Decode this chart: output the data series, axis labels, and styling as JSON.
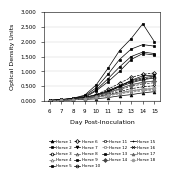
{
  "xlabel": "Day Post-Inoculation",
  "ylabel": "Optical Density Units",
  "xlim": [
    5.5,
    15.5
  ],
  "ylim": [
    0,
    3.0
  ],
  "xticks": [
    6,
    7,
    8,
    9,
    10,
    11,
    12,
    13,
    14,
    15
  ],
  "yticks": [
    0.0,
    0.5,
    1.0,
    1.5,
    2.0,
    2.5,
    3.0
  ],
  "series": [
    {
      "label": "Horse 1",
      "color": "#000000",
      "marker": "^",
      "fillstyle": "full",
      "linestyle": "-",
      "data": [
        [
          6,
          0.02
        ],
        [
          7,
          0.03
        ],
        [
          8,
          0.05
        ],
        [
          9,
          0.06
        ],
        [
          10,
          0.08
        ],
        [
          11,
          0.12
        ],
        [
          12,
          0.18
        ],
        [
          13,
          0.22
        ],
        [
          14,
          0.28
        ],
        [
          15,
          0.32
        ]
      ]
    },
    {
      "label": "Horse 2",
      "color": "#000000",
      "marker": "s",
      "fillstyle": "full",
      "linestyle": "-",
      "data": [
        [
          6,
          0.03
        ],
        [
          7,
          0.05
        ],
        [
          8,
          0.08
        ],
        [
          9,
          0.12
        ],
        [
          10,
          0.35
        ],
        [
          11,
          0.65
        ],
        [
          12,
          1.0
        ],
        [
          13,
          1.4
        ],
        [
          14,
          1.6
        ],
        [
          15,
          1.55
        ]
      ]
    },
    {
      "label": "Horse 3",
      "color": "#000000",
      "marker": "o",
      "fillstyle": "none",
      "linestyle": "--",
      "data": [
        [
          6,
          0.02
        ],
        [
          7,
          0.04
        ],
        [
          8,
          0.06
        ],
        [
          9,
          0.1
        ],
        [
          10,
          0.2
        ],
        [
          11,
          0.35
        ],
        [
          12,
          0.5
        ],
        [
          13,
          0.65
        ],
        [
          14,
          0.75
        ],
        [
          15,
          0.8
        ]
      ]
    },
    {
      "label": "Horse 4",
      "color": "#777777",
      "marker": "^",
      "fillstyle": "none",
      "linestyle": "--",
      "data": [
        [
          6,
          0.02
        ],
        [
          7,
          0.03
        ],
        [
          8,
          0.05
        ],
        [
          9,
          0.07
        ],
        [
          10,
          0.12
        ],
        [
          11,
          0.18
        ],
        [
          12,
          0.25
        ],
        [
          13,
          0.3
        ],
        [
          14,
          0.35
        ],
        [
          15,
          0.38
        ]
      ]
    },
    {
      "label": "Horse 5",
      "color": "#000000",
      "marker": "s",
      "fillstyle": "full",
      "linestyle": "-",
      "data": [
        [
          6,
          0.03
        ],
        [
          7,
          0.06
        ],
        [
          8,
          0.1
        ],
        [
          9,
          0.2
        ],
        [
          10,
          0.55
        ],
        [
          11,
          1.1
        ],
        [
          12,
          1.7
        ],
        [
          13,
          2.1
        ],
        [
          14,
          2.6
        ],
        [
          15,
          2.0
        ]
      ]
    },
    {
      "label": "Horse 6",
      "color": "#000000",
      "marker": "D",
      "fillstyle": "none",
      "linestyle": "--",
      "data": [
        [
          6,
          0.02
        ],
        [
          7,
          0.04
        ],
        [
          8,
          0.07
        ],
        [
          9,
          0.12
        ],
        [
          10,
          0.22
        ],
        [
          11,
          0.4
        ],
        [
          12,
          0.6
        ],
        [
          13,
          0.8
        ],
        [
          14,
          0.9
        ],
        [
          15,
          0.95
        ]
      ]
    },
    {
      "label": "Horse 7",
      "color": "#000000",
      "marker": "v",
      "fillstyle": "full",
      "linestyle": "-",
      "data": [
        [
          6,
          0.02
        ],
        [
          7,
          0.03
        ],
        [
          8,
          0.06
        ],
        [
          9,
          0.1
        ],
        [
          10,
          0.18
        ],
        [
          11,
          0.3
        ],
        [
          12,
          0.5
        ],
        [
          13,
          0.7
        ],
        [
          14,
          0.85
        ],
        [
          15,
          0.88
        ]
      ]
    },
    {
      "label": "Horse 8",
      "color": "#555555",
      "marker": "^",
      "fillstyle": "none",
      "linestyle": "-",
      "data": [
        [
          6,
          0.02
        ],
        [
          7,
          0.03
        ],
        [
          8,
          0.05
        ],
        [
          9,
          0.08
        ],
        [
          10,
          0.14
        ],
        [
          11,
          0.2
        ],
        [
          12,
          0.28
        ],
        [
          13,
          0.35
        ],
        [
          14,
          0.4
        ],
        [
          15,
          0.42
        ]
      ]
    },
    {
      "label": "Horse 9",
      "color": "#000000",
      "marker": "s",
      "fillstyle": "full",
      "linestyle": "-",
      "data": [
        [
          6,
          0.03
        ],
        [
          7,
          0.05
        ],
        [
          8,
          0.09
        ],
        [
          9,
          0.18
        ],
        [
          10,
          0.45
        ],
        [
          11,
          0.9
        ],
        [
          12,
          1.4
        ],
        [
          13,
          1.75
        ],
        [
          14,
          1.9
        ],
        [
          15,
          1.85
        ]
      ]
    },
    {
      "label": "Horse 10",
      "color": "#000000",
      "marker": "o",
      "fillstyle": "none",
      "linestyle": "-",
      "data": [
        [
          6,
          0.02
        ],
        [
          7,
          0.04
        ],
        [
          8,
          0.07
        ],
        [
          9,
          0.11
        ],
        [
          10,
          0.2
        ],
        [
          11,
          0.32
        ],
        [
          12,
          0.48
        ],
        [
          13,
          0.62
        ],
        [
          14,
          0.72
        ],
        [
          15,
          0.78
        ]
      ]
    },
    {
      "label": "Horse 11",
      "color": "#333333",
      "marker": "s",
      "fillstyle": "none",
      "linestyle": "--",
      "data": [
        [
          6,
          0.02
        ],
        [
          7,
          0.03
        ],
        [
          8,
          0.06
        ],
        [
          9,
          0.09
        ],
        [
          10,
          0.16
        ],
        [
          11,
          0.25
        ],
        [
          12,
          0.38
        ],
        [
          13,
          0.5
        ],
        [
          14,
          0.58
        ],
        [
          15,
          0.62
        ]
      ]
    },
    {
      "label": "Horse 12",
      "color": "#888888",
      "marker": "s",
      "fillstyle": "none",
      "linestyle": "--",
      "data": [
        [
          6,
          0.02
        ],
        [
          7,
          0.03
        ],
        [
          8,
          0.05
        ],
        [
          9,
          0.08
        ],
        [
          10,
          0.13
        ],
        [
          11,
          0.19
        ],
        [
          12,
          0.26
        ],
        [
          13,
          0.33
        ],
        [
          14,
          0.38
        ],
        [
          15,
          0.4
        ]
      ]
    },
    {
      "label": "Horse 13",
      "color": "#000000",
      "marker": "s",
      "fillstyle": "full",
      "linestyle": "-",
      "data": [
        [
          6,
          0.03
        ],
        [
          7,
          0.05
        ],
        [
          8,
          0.09
        ],
        [
          9,
          0.15
        ],
        [
          10,
          0.38
        ],
        [
          11,
          0.75
        ],
        [
          12,
          1.15
        ],
        [
          13,
          1.5
        ],
        [
          14,
          1.65
        ],
        [
          15,
          1.6
        ]
      ]
    },
    {
      "label": "Horse 14",
      "color": "#444444",
      "marker": "D",
      "fillstyle": "full",
      "linestyle": "-",
      "data": [
        [
          6,
          0.02
        ],
        [
          7,
          0.04
        ],
        [
          8,
          0.06
        ],
        [
          9,
          0.1
        ],
        [
          10,
          0.18
        ],
        [
          11,
          0.28
        ],
        [
          12,
          0.42
        ],
        [
          13,
          0.55
        ],
        [
          14,
          0.63
        ],
        [
          15,
          0.68
        ]
      ]
    },
    {
      "label": "Horse 15",
      "color": "#000000",
      "marker": "+",
      "fillstyle": "full",
      "linestyle": "-",
      "data": [
        [
          6,
          0.02
        ],
        [
          7,
          0.04
        ],
        [
          8,
          0.07
        ],
        [
          9,
          0.12
        ],
        [
          10,
          0.22
        ],
        [
          11,
          0.35
        ],
        [
          12,
          0.52
        ],
        [
          13,
          0.68
        ],
        [
          14,
          0.79
        ],
        [
          15,
          0.84
        ]
      ]
    },
    {
      "label": "Horse 16",
      "color": "#000000",
      "marker": "x",
      "fillstyle": "full",
      "linestyle": "--",
      "data": [
        [
          6,
          0.02
        ],
        [
          7,
          0.03
        ],
        [
          8,
          0.05
        ],
        [
          9,
          0.08
        ],
        [
          10,
          0.14
        ],
        [
          11,
          0.22
        ],
        [
          12,
          0.32
        ],
        [
          13,
          0.42
        ],
        [
          14,
          0.48
        ],
        [
          15,
          0.52
        ]
      ]
    },
    {
      "label": "Horse 17",
      "color": "#666666",
      "marker": "^",
      "fillstyle": "full",
      "linestyle": "-",
      "data": [
        [
          6,
          0.02
        ],
        [
          7,
          0.03
        ],
        [
          8,
          0.06
        ],
        [
          9,
          0.1
        ],
        [
          10,
          0.18
        ],
        [
          11,
          0.28
        ],
        [
          12,
          0.42
        ],
        [
          13,
          0.55
        ],
        [
          14,
          0.64
        ],
        [
          15,
          0.68
        ]
      ]
    },
    {
      "label": "Horse 18",
      "color": "#999999",
      "marker": "o",
      "fillstyle": "full",
      "linestyle": "--",
      "data": [
        [
          6,
          0.02
        ],
        [
          7,
          0.03
        ],
        [
          8,
          0.05
        ],
        [
          9,
          0.08
        ],
        [
          10,
          0.13
        ],
        [
          11,
          0.2
        ],
        [
          12,
          0.28
        ],
        [
          13,
          0.36
        ],
        [
          14,
          0.42
        ],
        [
          15,
          0.45
        ]
      ]
    }
  ],
  "legend_ncol": 4,
  "legend_fontsize": 3.0,
  "tick_fontsize": 4,
  "label_fontsize": 4.5
}
